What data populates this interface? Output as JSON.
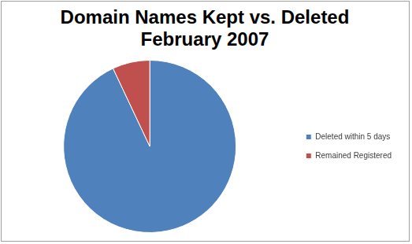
{
  "chart_data": {
    "type": "pie",
    "title": "Domain Names Kept vs. Deleted February 2007",
    "categories": [
      "Deleted within 5 days",
      "Remained Registered"
    ],
    "values": [
      93,
      7
    ],
    "colors": [
      "#4f81bd",
      "#c0504d"
    ],
    "legend": "right"
  }
}
